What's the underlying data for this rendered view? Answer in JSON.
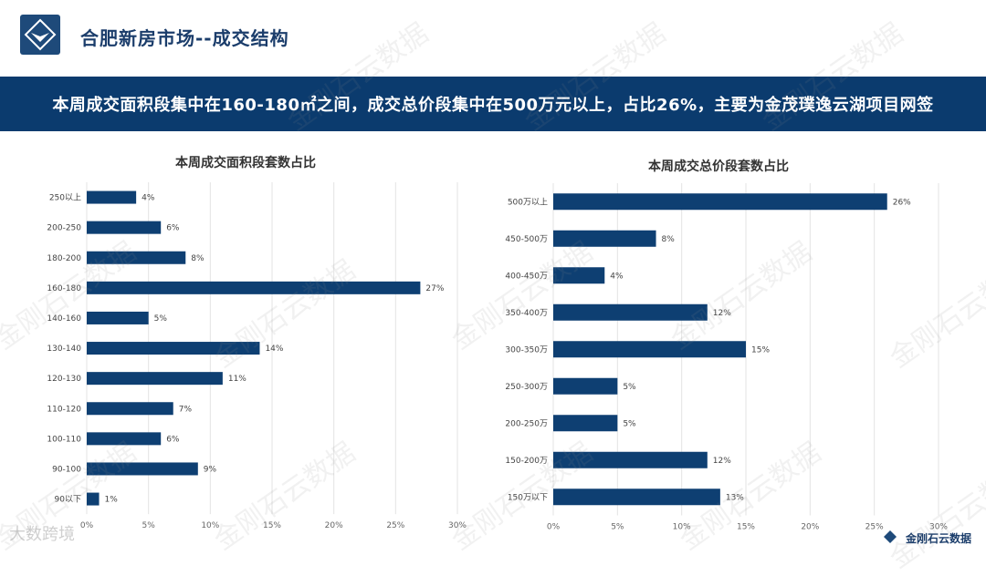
{
  "header": {
    "title": "合肥新房市场--成交结构",
    "banner": "本周成交面积段集中在160-180㎡之间，成交总价段集中在500万元以上，占比26%，主要为金茂璞逸云湖项目网签"
  },
  "footer": {
    "left_text": "大数跨境",
    "brand": "金刚石云数据"
  },
  "watermark_text": "金刚石云数据",
  "colors": {
    "bar": "#0e3f72",
    "banner": "#0b3b6e",
    "title": "#1b3d6b"
  },
  "chart_data": [
    {
      "type": "bar",
      "orientation": "horizontal",
      "title": "本周成交面积段套数占比",
      "categories": [
        "250以上",
        "200-250",
        "180-200",
        "160-180",
        "140-160",
        "130-140",
        "120-130",
        "110-120",
        "100-110",
        "90-100",
        "90以下"
      ],
      "values": [
        4,
        6,
        8,
        27,
        5,
        14,
        11,
        7,
        6,
        9,
        1
      ],
      "labels": [
        "4%",
        "6%",
        "8%",
        "27%",
        "5%",
        "14%",
        "11%",
        "7%",
        "6%",
        "9%",
        "1%"
      ],
      "xlim": [
        0,
        30
      ],
      "xticks": [
        "0%",
        "5%",
        "10%",
        "15%",
        "20%",
        "25%",
        "30%"
      ],
      "grid": true
    },
    {
      "type": "bar",
      "orientation": "horizontal",
      "title": "本周成交总价段套数占比",
      "categories": [
        "500万以上",
        "450-500万",
        "400-450万",
        "350-400万",
        "300-350万",
        "250-300万",
        "200-250万",
        "150-200万",
        "150万以下"
      ],
      "values": [
        26,
        8,
        4,
        12,
        15,
        5,
        5,
        12,
        13
      ],
      "labels": [
        "26%",
        "8%",
        "4%",
        "12%",
        "15%",
        "5%",
        "5%",
        "12%",
        "13%"
      ],
      "xlim": [
        0,
        30
      ],
      "xticks": [
        "0%",
        "5%",
        "10%",
        "15%",
        "20%",
        "25%",
        "30%"
      ],
      "grid": true
    }
  ]
}
